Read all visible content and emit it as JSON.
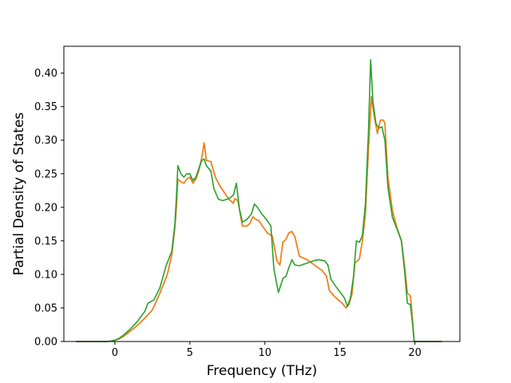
{
  "chart_data": {
    "type": "line",
    "title": "",
    "xlabel": "Frequency (THz)",
    "ylabel": "Partial Density of States",
    "xlim": [
      -3.4,
      23.0
    ],
    "ylim": [
      0.0,
      0.44
    ],
    "xticks": [
      0,
      5,
      10,
      15,
      20
    ],
    "yticks": [
      0.0,
      0.05,
      0.1,
      0.15,
      0.2,
      0.25,
      0.3,
      0.35,
      0.4
    ],
    "xtick_labels": [
      "0",
      "5",
      "10",
      "15",
      "20"
    ],
    "ytick_labels": [
      "0.00",
      "0.05",
      "0.10",
      "0.15",
      "0.20",
      "0.25",
      "0.30",
      "0.35",
      "0.40"
    ],
    "grid": false,
    "legend": "none",
    "series": [
      {
        "color": "#1f77b4",
        "points": [
          [
            -2.6,
            0
          ],
          [
            -0.5,
            0
          ],
          [
            -0.2,
            0.001
          ],
          [
            0.0,
            0.002
          ],
          [
            0.3,
            0.004
          ],
          [
            0.6,
            0.008
          ],
          [
            1.0,
            0.015
          ],
          [
            1.5,
            0.024
          ],
          [
            2.0,
            0.035
          ],
          [
            2.5,
            0.047
          ],
          [
            3.0,
            0.072
          ],
          [
            3.5,
            0.1
          ],
          [
            3.8,
            0.13
          ],
          [
            4.0,
            0.17
          ],
          [
            4.1,
            0.2
          ],
          [
            4.2,
            0.242
          ],
          [
            4.4,
            0.238
          ],
          [
            4.6,
            0.236
          ],
          [
            4.8,
            0.242
          ],
          [
            5.0,
            0.245
          ],
          [
            5.2,
            0.236
          ],
          [
            5.4,
            0.242
          ],
          [
            5.6,
            0.255
          ],
          [
            5.8,
            0.275
          ],
          [
            5.95,
            0.296
          ],
          [
            6.1,
            0.27
          ],
          [
            6.4,
            0.268
          ],
          [
            6.7,
            0.245
          ],
          [
            7.0,
            0.232
          ],
          [
            7.3,
            0.222
          ],
          [
            7.6,
            0.212
          ],
          [
            7.9,
            0.206
          ],
          [
            8.0,
            0.213
          ],
          [
            8.2,
            0.21
          ],
          [
            8.5,
            0.172
          ],
          [
            8.8,
            0.172
          ],
          [
            9.0,
            0.176
          ],
          [
            9.2,
            0.186
          ],
          [
            9.4,
            0.182
          ],
          [
            9.6,
            0.18
          ],
          [
            9.9,
            0.17
          ],
          [
            10.2,
            0.161
          ],
          [
            10.5,
            0.157
          ],
          [
            10.8,
            0.12
          ],
          [
            11.0,
            0.114
          ],
          [
            11.2,
            0.148
          ],
          [
            11.4,
            0.152
          ],
          [
            11.6,
            0.162
          ],
          [
            11.8,
            0.164
          ],
          [
            12.0,
            0.156
          ],
          [
            12.3,
            0.127
          ],
          [
            12.8,
            0.122
          ],
          [
            13.3,
            0.114
          ],
          [
            13.8,
            0.106
          ],
          [
            14.1,
            0.098
          ],
          [
            14.3,
            0.076
          ],
          [
            14.6,
            0.068
          ],
          [
            14.9,
            0.062
          ],
          [
            15.2,
            0.056
          ],
          [
            15.4,
            0.05
          ],
          [
            15.6,
            0.055
          ],
          [
            15.8,
            0.07
          ],
          [
            16.0,
            0.117
          ],
          [
            16.3,
            0.123
          ],
          [
            16.5,
            0.15
          ],
          [
            16.7,
            0.19
          ],
          [
            16.9,
            0.285
          ],
          [
            17.1,
            0.365
          ],
          [
            17.3,
            0.335
          ],
          [
            17.5,
            0.31
          ],
          [
            17.7,
            0.33
          ],
          [
            17.9,
            0.33
          ],
          [
            18.0,
            0.325
          ],
          [
            18.2,
            0.245
          ],
          [
            18.5,
            0.195
          ],
          [
            18.8,
            0.17
          ],
          [
            19.1,
            0.15
          ],
          [
            19.3,
            0.115
          ],
          [
            19.5,
            0.072
          ],
          [
            19.7,
            0.068
          ],
          [
            19.85,
            0.03
          ],
          [
            19.95,
            0.0
          ],
          [
            20.2,
            0
          ],
          [
            21.8,
            0
          ]
        ]
      },
      {
        "color": "#ff7f0e",
        "points": [
          [
            -2.6,
            0
          ],
          [
            -0.5,
            0
          ],
          [
            -0.2,
            0.001
          ],
          [
            0.0,
            0.002
          ],
          [
            0.3,
            0.004
          ],
          [
            0.6,
            0.008
          ],
          [
            1.0,
            0.015
          ],
          [
            1.5,
            0.024
          ],
          [
            2.0,
            0.035
          ],
          [
            2.5,
            0.047
          ],
          [
            3.0,
            0.072
          ],
          [
            3.5,
            0.1
          ],
          [
            3.8,
            0.13
          ],
          [
            4.0,
            0.17
          ],
          [
            4.1,
            0.2
          ],
          [
            4.2,
            0.242
          ],
          [
            4.4,
            0.238
          ],
          [
            4.6,
            0.236
          ],
          [
            4.8,
            0.242
          ],
          [
            5.0,
            0.245
          ],
          [
            5.2,
            0.236
          ],
          [
            5.4,
            0.242
          ],
          [
            5.6,
            0.255
          ],
          [
            5.8,
            0.275
          ],
          [
            5.95,
            0.296
          ],
          [
            6.1,
            0.27
          ],
          [
            6.4,
            0.268
          ],
          [
            6.7,
            0.245
          ],
          [
            7.0,
            0.232
          ],
          [
            7.3,
            0.222
          ],
          [
            7.6,
            0.212
          ],
          [
            7.9,
            0.206
          ],
          [
            8.0,
            0.213
          ],
          [
            8.2,
            0.21
          ],
          [
            8.5,
            0.172
          ],
          [
            8.8,
            0.172
          ],
          [
            9.0,
            0.176
          ],
          [
            9.2,
            0.186
          ],
          [
            9.4,
            0.182
          ],
          [
            9.6,
            0.18
          ],
          [
            9.9,
            0.17
          ],
          [
            10.2,
            0.161
          ],
          [
            10.5,
            0.157
          ],
          [
            10.8,
            0.12
          ],
          [
            11.0,
            0.114
          ],
          [
            11.2,
            0.148
          ],
          [
            11.4,
            0.152
          ],
          [
            11.6,
            0.162
          ],
          [
            11.8,
            0.164
          ],
          [
            12.0,
            0.156
          ],
          [
            12.3,
            0.127
          ],
          [
            12.8,
            0.122
          ],
          [
            13.3,
            0.114
          ],
          [
            13.8,
            0.106
          ],
          [
            14.1,
            0.098
          ],
          [
            14.3,
            0.076
          ],
          [
            14.6,
            0.068
          ],
          [
            14.9,
            0.062
          ],
          [
            15.2,
            0.056
          ],
          [
            15.4,
            0.05
          ],
          [
            15.6,
            0.055
          ],
          [
            15.8,
            0.07
          ],
          [
            16.0,
            0.117
          ],
          [
            16.3,
            0.123
          ],
          [
            16.5,
            0.15
          ],
          [
            16.7,
            0.19
          ],
          [
            16.9,
            0.285
          ],
          [
            17.1,
            0.365
          ],
          [
            17.3,
            0.335
          ],
          [
            17.5,
            0.31
          ],
          [
            17.7,
            0.33
          ],
          [
            17.9,
            0.33
          ],
          [
            18.0,
            0.325
          ],
          [
            18.2,
            0.245
          ],
          [
            18.5,
            0.195
          ],
          [
            18.8,
            0.17
          ],
          [
            19.1,
            0.15
          ],
          [
            19.3,
            0.115
          ],
          [
            19.5,
            0.072
          ],
          [
            19.7,
            0.068
          ],
          [
            19.85,
            0.03
          ],
          [
            19.95,
            0.0
          ],
          [
            20.2,
            0
          ],
          [
            21.8,
            0
          ]
        ]
      },
      {
        "color": "#2ca02c",
        "points": [
          [
            -2.6,
            0
          ],
          [
            -0.5,
            0
          ],
          [
            -0.2,
            0.001
          ],
          [
            0.0,
            0.002
          ],
          [
            0.3,
            0.005
          ],
          [
            0.6,
            0.01
          ],
          [
            1.0,
            0.018
          ],
          [
            1.5,
            0.03
          ],
          [
            2.0,
            0.045
          ],
          [
            2.2,
            0.057
          ],
          [
            2.6,
            0.062
          ],
          [
            3.0,
            0.08
          ],
          [
            3.4,
            0.112
          ],
          [
            3.8,
            0.135
          ],
          [
            4.0,
            0.175
          ],
          [
            4.1,
            0.215
          ],
          [
            4.2,
            0.262
          ],
          [
            4.4,
            0.25
          ],
          [
            4.6,
            0.245
          ],
          [
            4.8,
            0.25
          ],
          [
            5.0,
            0.25
          ],
          [
            5.2,
            0.24
          ],
          [
            5.4,
            0.245
          ],
          [
            5.6,
            0.258
          ],
          [
            5.8,
            0.27
          ],
          [
            5.95,
            0.272
          ],
          [
            6.1,
            0.262
          ],
          [
            6.4,
            0.254
          ],
          [
            6.6,
            0.228
          ],
          [
            6.9,
            0.212
          ],
          [
            7.2,
            0.21
          ],
          [
            7.6,
            0.213
          ],
          [
            7.9,
            0.218
          ],
          [
            8.1,
            0.236
          ],
          [
            8.3,
            0.198
          ],
          [
            8.5,
            0.178
          ],
          [
            8.8,
            0.182
          ],
          [
            9.1,
            0.19
          ],
          [
            9.3,
            0.205
          ],
          [
            9.5,
            0.2
          ],
          [
            9.8,
            0.19
          ],
          [
            10.1,
            0.182
          ],
          [
            10.4,
            0.172
          ],
          [
            10.6,
            0.108
          ],
          [
            10.9,
            0.073
          ],
          [
            11.2,
            0.094
          ],
          [
            11.4,
            0.097
          ],
          [
            11.6,
            0.11
          ],
          [
            11.8,
            0.122
          ],
          [
            12.0,
            0.114
          ],
          [
            12.3,
            0.113
          ],
          [
            12.7,
            0.116
          ],
          [
            13.2,
            0.12
          ],
          [
            13.6,
            0.122
          ],
          [
            14.0,
            0.12
          ],
          [
            14.2,
            0.114
          ],
          [
            14.4,
            0.093
          ],
          [
            14.7,
            0.083
          ],
          [
            15.0,
            0.074
          ],
          [
            15.3,
            0.065
          ],
          [
            15.5,
            0.052
          ],
          [
            15.7,
            0.065
          ],
          [
            15.9,
            0.095
          ],
          [
            16.1,
            0.15
          ],
          [
            16.3,
            0.148
          ],
          [
            16.5,
            0.158
          ],
          [
            16.7,
            0.205
          ],
          [
            16.9,
            0.31
          ],
          [
            17.05,
            0.42
          ],
          [
            17.2,
            0.358
          ],
          [
            17.4,
            0.325
          ],
          [
            17.6,
            0.318
          ],
          [
            17.8,
            0.32
          ],
          [
            18.0,
            0.3
          ],
          [
            18.2,
            0.23
          ],
          [
            18.5,
            0.185
          ],
          [
            18.8,
            0.168
          ],
          [
            19.1,
            0.15
          ],
          [
            19.3,
            0.108
          ],
          [
            19.5,
            0.057
          ],
          [
            19.7,
            0.055
          ],
          [
            19.85,
            0.025
          ],
          [
            19.95,
            0.0
          ],
          [
            20.2,
            0
          ],
          [
            21.8,
            0
          ]
        ]
      }
    ]
  }
}
